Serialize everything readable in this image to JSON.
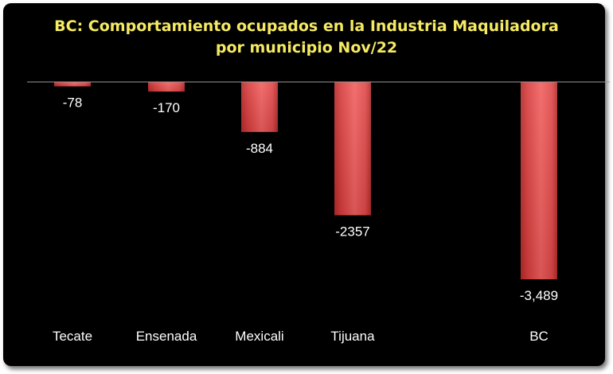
{
  "chart_data": {
    "type": "bar",
    "title_lines": [
      "BC: Comportamiento ocupados  en la Industria Maquiladora",
      "por municipio Nov/22"
    ],
    "categories": [
      "Tecate",
      "Ensenada",
      "Mexicali",
      "Tijuana",
      "BC"
    ],
    "values": [
      -78,
      -170,
      -884,
      -2357,
      -3489
    ],
    "value_labels": [
      "-78",
      "-170",
      "-884",
      "-2357",
      "-3,489"
    ],
    "xlabel": "",
    "ylabel": "",
    "ylim": [
      -3489,
      0
    ],
    "grid": false,
    "legend": "none",
    "colors": {
      "background": "#000000",
      "title": "#f5ea62",
      "bar_light": "#f0605f",
      "bar_dark": "#b42a2a",
      "text": "#ffffff",
      "baseline": "#9a9a9a"
    }
  }
}
